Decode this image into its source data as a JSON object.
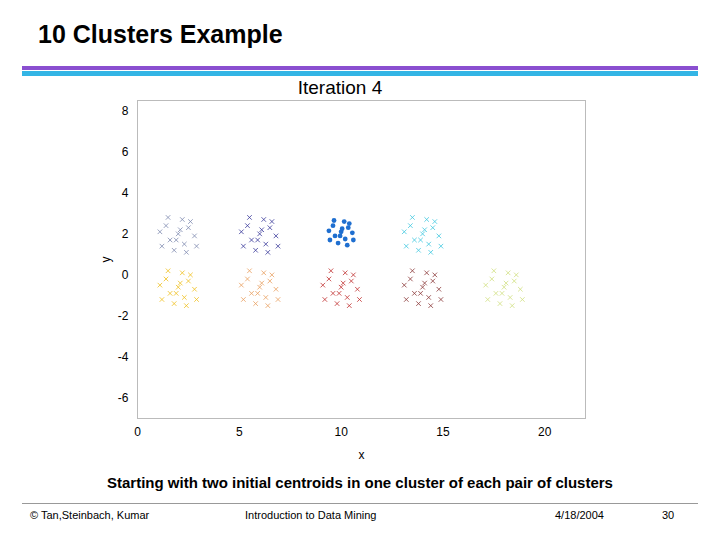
{
  "chart_data": {
    "type": "scatter",
    "title": "10 Clusters Example",
    "subtitle": "Iteration 4",
    "caption": "Starting with two initial centroids in one cluster of each pair of clusters",
    "footer": {
      "left": "© Tan,Steinbach, Kumar",
      "center": "Introduction to Data Mining",
      "date": "4/18/2004",
      "page": 30
    },
    "x_label": "x",
    "y_label": "y",
    "xlim": [
      0,
      22
    ],
    "ylim": [
      -7,
      8.5
    ],
    "xticks": [
      0,
      5,
      10,
      15,
      20
    ],
    "yticks": [
      -6,
      -4,
      -2,
      0,
      2,
      4,
      6,
      8
    ],
    "grid": false,
    "series": [
      {
        "color": "#7f8ab0",
        "marker": "x",
        "x": [
          2,
          2.5,
          1.4,
          2.3,
          1.6,
          2.8,
          1.1,
          2.2,
          1.8,
          2.6,
          1.5,
          2.9,
          1.2,
          2.1,
          1.9,
          2.4
        ],
        "y": [
          2,
          2.3,
          2.4,
          1.5,
          1.7,
          1.9,
          2.1,
          2.7,
          1.2,
          2.6,
          2.8,
          1.4,
          1.4,
          2.2,
          1.7,
          1.1
        ]
      },
      {
        "color": "#3a3a9a",
        "marker": "x",
        "x": [
          6,
          6.5,
          5.4,
          6.3,
          5.6,
          6.8,
          5.1,
          6.2,
          5.8,
          6.6,
          5.5,
          6.9,
          5.2,
          6.1,
          5.9,
          6.4
        ],
        "y": [
          2,
          2.3,
          2.4,
          1.5,
          1.7,
          1.9,
          2.1,
          2.7,
          1.2,
          2.6,
          2.8,
          1.4,
          1.4,
          2.2,
          1.7,
          1.1
        ]
      },
      {
        "color": "#1f6fd0",
        "marker": "dot",
        "x": [
          10,
          10.35,
          9.6,
          10.2,
          9.7,
          10.55,
          9.4,
          10.15,
          9.85,
          10.4,
          9.65,
          10.6,
          9.45,
          10.05,
          9.95,
          10.3
        ],
        "y": [
          2.1,
          2.3,
          2.4,
          1.75,
          1.9,
          2.05,
          2.15,
          2.6,
          1.55,
          2.5,
          2.65,
          1.7,
          1.7,
          2.25,
          1.9,
          1.45
        ]
      },
      {
        "color": "#40c8e0",
        "marker": "x",
        "x": [
          14,
          14.5,
          13.4,
          14.3,
          13.6,
          14.8,
          13.1,
          14.2,
          13.8,
          14.6,
          13.5,
          14.9,
          13.2,
          14.1,
          13.9,
          14.4
        ],
        "y": [
          2,
          2.3,
          2.4,
          1.5,
          1.7,
          1.9,
          2.1,
          2.7,
          1.2,
          2.6,
          2.8,
          1.4,
          1.4,
          2.2,
          1.7,
          1.1
        ]
      },
      {
        "color": "#f0c020",
        "marker": "x",
        "x": [
          2,
          2.5,
          1.4,
          2.3,
          1.6,
          2.8,
          1.1,
          2.2,
          1.8,
          2.6,
          1.5,
          2.9,
          1.2,
          2.1,
          1.9,
          2.4
        ],
        "y": [
          -0.6,
          -0.3,
          -0.2,
          -1.1,
          -0.9,
          -0.7,
          -0.5,
          0.1,
          -1.4,
          0,
          0.2,
          -1.2,
          -1.2,
          -0.4,
          -0.9,
          -1.5
        ]
      },
      {
        "color": "#e8a060",
        "marker": "x",
        "x": [
          6,
          6.5,
          5.4,
          6.3,
          5.6,
          6.8,
          5.1,
          6.2,
          5.8,
          6.6,
          5.5,
          6.9,
          5.2,
          6.1,
          5.9,
          6.4
        ],
        "y": [
          -0.6,
          -0.3,
          -0.2,
          -1.1,
          -0.9,
          -0.7,
          -0.5,
          0.1,
          -1.4,
          0,
          0.2,
          -1.2,
          -1.2,
          -0.4,
          -0.9,
          -1.5
        ]
      },
      {
        "color": "#c03030",
        "marker": "x",
        "x": [
          10,
          10.5,
          9.4,
          10.3,
          9.6,
          10.8,
          9.1,
          10.2,
          9.8,
          10.6,
          9.5,
          10.9,
          9.2,
          10.1,
          9.9,
          10.4
        ],
        "y": [
          -0.6,
          -0.3,
          -0.2,
          -1.1,
          -0.9,
          -0.7,
          -0.5,
          0.1,
          -1.4,
          0,
          0.2,
          -1.2,
          -1.2,
          -0.4,
          -0.9,
          -1.5
        ]
      },
      {
        "color": "#8b3a3a",
        "marker": "x",
        "x": [
          14,
          14.5,
          13.4,
          14.3,
          13.6,
          14.8,
          13.1,
          14.2,
          13.8,
          14.6,
          13.5,
          14.9,
          13.2,
          14.1,
          13.9,
          14.4
        ],
        "y": [
          -0.6,
          -0.3,
          -0.2,
          -1.1,
          -0.9,
          -0.7,
          -0.5,
          0.1,
          -1.4,
          0,
          0.2,
          -1.2,
          -1.2,
          -0.4,
          -0.9,
          -1.5
        ]
      },
      {
        "color": "#d0e080",
        "marker": "x",
        "x": [
          18,
          18.5,
          17.4,
          18.3,
          17.6,
          18.8,
          17.1,
          18.2,
          17.8,
          18.6,
          17.5,
          18.9,
          17.2,
          18.1,
          17.9,
          18.4
        ],
        "y": [
          -0.6,
          -0.3,
          -0.2,
          -1.1,
          -0.9,
          -0.7,
          -0.5,
          0.1,
          -1.4,
          0,
          0.2,
          -1.2,
          -1.2,
          -0.4,
          -0.9,
          -1.5
        ]
      }
    ]
  }
}
